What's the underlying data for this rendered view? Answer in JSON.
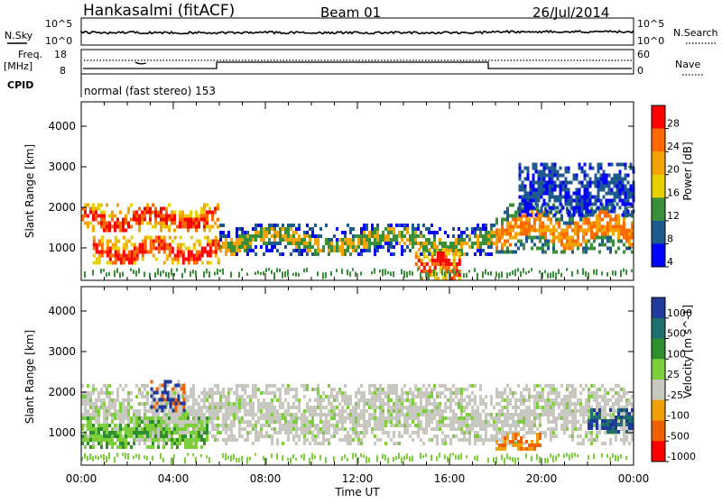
{
  "header": {
    "station": "Hankasalmi (fitACF)",
    "beam": "Beam 01",
    "date": "26/Jul/2014"
  },
  "top_panels": {
    "nsky_label": "N.Sky",
    "nsky_ticks": [
      "10^5",
      "10^0"
    ],
    "nsearch_label": "N.Search",
    "nsearch_ticks": [
      "10^5",
      "10^0"
    ],
    "freq_label": "Freq.",
    "freq_unit": "[MHz]",
    "freq_ticks": [
      "18",
      "8"
    ],
    "nave_label": "Nave",
    "nave_ticks": [
      "60",
      "0"
    ],
    "cpid_label": "CPID",
    "cpid_text": "normal (fast stereo) 153"
  },
  "chart_data": [
    {
      "type": "heatmap",
      "name": "power",
      "ylabel": "Slant Range [km]",
      "xlabel": "",
      "xlim_hours": [
        0,
        24
      ],
      "ylim_km": [
        200,
        4600
      ],
      "yticks": [
        1000,
        2000,
        3000,
        4000
      ],
      "colorbar": {
        "label": "Power [dB]",
        "ticks": [
          "28",
          "24",
          "20",
          "16",
          "12",
          "8",
          "4"
        ],
        "colors": [
          "#ff0000",
          "#ff6a00",
          "#f5a300",
          "#e8d000",
          "#3a8f3a",
          "#1f5a8f",
          "#0000ff"
        ]
      },
      "features_hours_km": [
        {
          "t": [
            0.0,
            6.0
          ],
          "r": [
            1400,
            2100
          ],
          "level": "high"
        },
        {
          "t": [
            0.5,
            6.0
          ],
          "r": [
            600,
            1300
          ],
          "level": "high"
        },
        {
          "t": [
            6.0,
            18.0
          ],
          "r": [
            800,
            1600
          ],
          "level": "mid"
        },
        {
          "t": [
            14.5,
            16.5
          ],
          "r": [
            200,
            1000
          ],
          "level": "high"
        },
        {
          "t": [
            18.0,
            24.0
          ],
          "r": [
            900,
            2100
          ],
          "level": "mid-high"
        },
        {
          "t": [
            19.0,
            24.0
          ],
          "r": [
            1800,
            3100
          ],
          "level": "low"
        }
      ]
    },
    {
      "type": "heatmap",
      "name": "velocity",
      "ylabel": "Slant Range [km]",
      "xlabel": "Time UT",
      "xlim_hours": [
        0,
        24
      ],
      "ylim_km": [
        200,
        4600
      ],
      "yticks": [
        1000,
        2000,
        3000,
        4000
      ],
      "xticks": [
        "00:00",
        "04:00",
        "08:00",
        "12:00",
        "16:00",
        "20:00",
        "00:00"
      ],
      "colorbar": {
        "label": "Velocity [m s^-1]",
        "ticks": [
          "1000",
          "500",
          "100",
          "25",
          "-25",
          "-100",
          "-500",
          "-1000"
        ],
        "colors": [
          "#1f3a9a",
          "#1f6f6f",
          "#2f8f2f",
          "#7ccf3a",
          "#c8c8c0",
          "#f0a000",
          "#f06000",
          "#ff0000"
        ]
      },
      "features_hours_km": [
        {
          "t": [
            0.0,
            24.0
          ],
          "r": [
            700,
            2200
          ],
          "level": "near-zero"
        },
        {
          "t": [
            0.0,
            5.5
          ],
          "r": [
            600,
            1400
          ],
          "level": "positive-low"
        },
        {
          "t": [
            3.0,
            4.5
          ],
          "r": [
            1500,
            2300
          ],
          "level": "mixed"
        },
        {
          "t": [
            18.0,
            20.0
          ],
          "r": [
            600,
            1000
          ],
          "level": "negative"
        },
        {
          "t": [
            22.0,
            24.0
          ],
          "r": [
            1000,
            1600
          ],
          "level": "positive-high"
        }
      ]
    }
  ],
  "colors": {
    "frame": "#000000",
    "background": "#ffffff"
  }
}
